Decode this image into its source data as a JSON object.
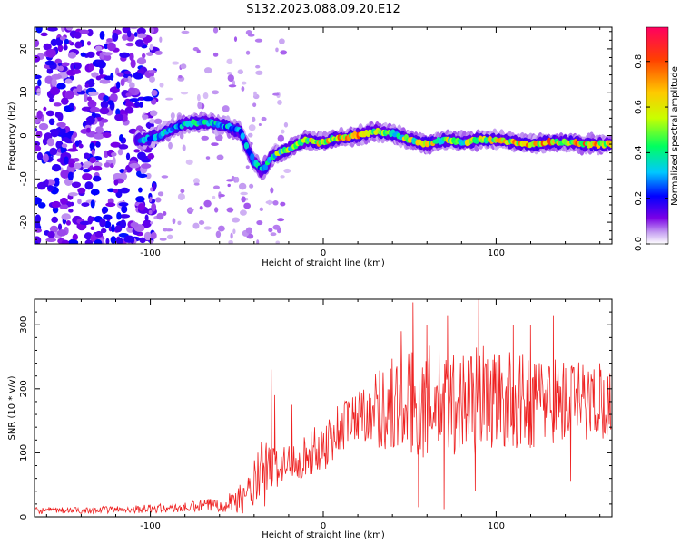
{
  "title": "S132.2023.088.09.20.E12",
  "chart_data": [
    {
      "type": "heatmap",
      "title": "S132.2023.088.09.20.E12",
      "xlabel": "Height of straight line (km)",
      "ylabel": "Frequency (Hz)",
      "xlim": [
        -167,
        167
      ],
      "ylim": [
        -25,
        25
      ],
      "xticks": [
        -100,
        0,
        100
      ],
      "yticks": [
        -20,
        -10,
        0,
        10,
        20
      ],
      "colorbar": {
        "label": "Normalized spectral amplitude",
        "range": [
          0,
          0.95
        ],
        "ticks": [
          "0.0",
          "0.2",
          "0.4",
          "0.6",
          "0.8"
        ],
        "tick_values": [
          0,
          0.2,
          0.4,
          0.6,
          0.8
        ],
        "colors": [
          "#ffffff",
          "#c9a6f2",
          "#7a00e6",
          "#0000ff",
          "#00c8ff",
          "#00ff60",
          "#c8ff00",
          "#ffc800",
          "#ff4000",
          "#ff0060"
        ]
      },
      "ridge": {
        "x": [
          -105,
          -95,
          -85,
          -75,
          -65,
          -55,
          -48,
          -44,
          -40,
          -36,
          -33,
          -30,
          -25,
          -20,
          -15,
          -10,
          -5,
          0,
          5,
          10,
          20,
          30,
          40,
          50,
          60,
          70,
          80,
          90,
          100,
          110,
          120,
          130,
          140,
          150,
          160,
          167
        ],
        "y": [
          -1,
          0,
          2,
          3,
          3,
          2,
          1,
          -3,
          -6,
          -8,
          -7,
          -5,
          -4,
          -3,
          -2,
          -1,
          -1.5,
          -1.5,
          -1,
          -0.5,
          0,
          1,
          0.5,
          -1,
          -2,
          -1,
          -1.5,
          -1,
          -1,
          -1.5,
          -2,
          -1.5,
          -1.5,
          -2,
          -2,
          -2
        ],
        "amplitude": [
          0.35,
          0.4,
          0.45,
          0.5,
          0.45,
          0.4,
          0.35,
          0.4,
          0.45,
          0.4,
          0.5,
          0.6,
          0.6,
          0.6,
          0.7,
          0.7,
          0.7,
          0.8,
          0.85,
          0.9,
          0.85,
          0.7,
          0.6,
          0.7,
          0.75,
          0.7,
          0.65,
          0.7,
          0.75,
          0.8,
          0.85,
          0.85,
          0.8,
          0.85,
          0.9,
          0.85
        ]
      }
    },
    {
      "type": "line",
      "title": "",
      "xlabel": "Height of straight line (km)",
      "ylabel": "SNR (10 * v/v)",
      "xlim": [
        -167,
        167
      ],
      "ylim": [
        0,
        340
      ],
      "xticks": [
        -100,
        0,
        100
      ],
      "yticks": [
        0,
        100,
        200,
        300
      ],
      "color": "#ee2222",
      "envelope": {
        "x": [
          -167,
          -140,
          -110,
          -80,
          -60,
          -45,
          -40,
          -35,
          -30,
          -25,
          -20,
          -10,
          0,
          10,
          20,
          30,
          40,
          50,
          60,
          70,
          80,
          90,
          100,
          110,
          120,
          130,
          140,
          150,
          160,
          167
        ],
        "baseline": [
          10,
          10,
          12,
          14,
          20,
          30,
          50,
          65,
          75,
          80,
          85,
          95,
          110,
          140,
          160,
          170,
          175,
          175,
          180,
          175,
          180,
          185,
          185,
          180,
          180,
          185,
          180,
          180,
          180,
          180
        ],
        "spread": [
          5,
          5,
          6,
          8,
          12,
          25,
          40,
          60,
          40,
          30,
          30,
          35,
          40,
          45,
          40,
          60,
          80,
          90,
          90,
          85,
          85,
          90,
          80,
          75,
          75,
          70,
          70,
          65,
          60,
          55
        ]
      },
      "peaks": [
        {
          "x": -30,
          "y": 230
        },
        {
          "x": -28,
          "y": 190
        },
        {
          "x": -18,
          "y": 175
        },
        {
          "x": 45,
          "y": 290
        },
        {
          "x": 52,
          "y": 335
        },
        {
          "x": 60,
          "y": 300
        },
        {
          "x": 72,
          "y": 315
        },
        {
          "x": 90,
          "y": 340
        },
        {
          "x": 110,
          "y": 300
        },
        {
          "x": 120,
          "y": 300
        },
        {
          "x": 133,
          "y": 315
        },
        {
          "x": 160,
          "y": 240
        },
        {
          "x": 55,
          "y": 15
        },
        {
          "x": 70,
          "y": 12
        },
        {
          "x": 88,
          "y": 40
        },
        {
          "x": 143,
          "y": 55
        }
      ]
    }
  ]
}
